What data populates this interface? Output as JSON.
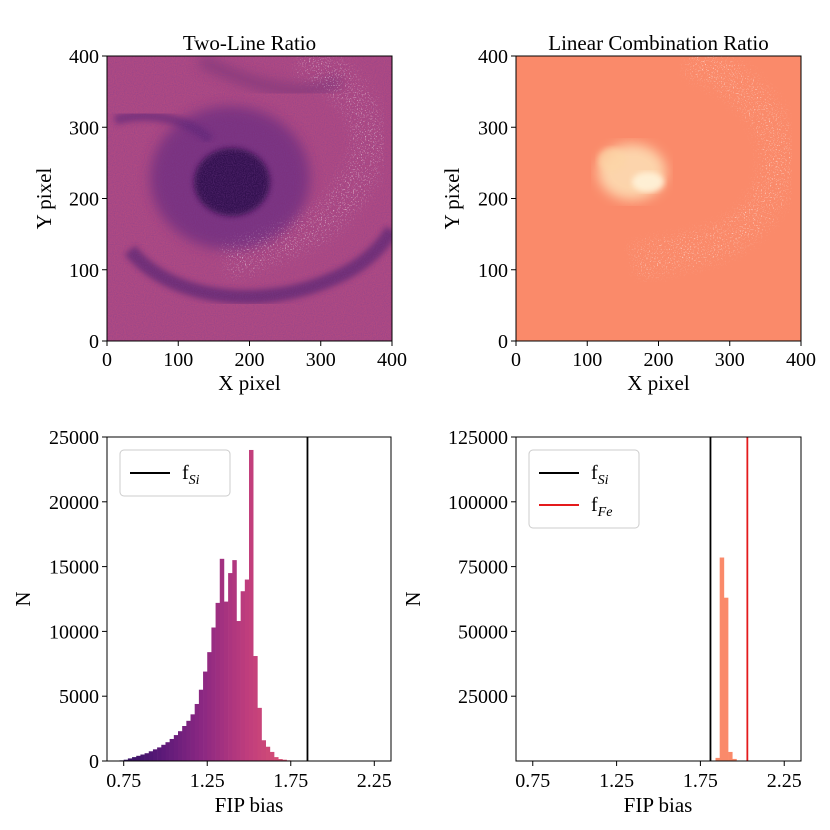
{
  "chart_data": [
    {
      "type": "heatmap",
      "title": "Two-Line Ratio",
      "xlabel": "X pixel",
      "ylabel": "Y pixel",
      "xlim": [
        0,
        400
      ],
      "ylim": [
        0,
        400
      ],
      "xticks": [
        "0",
        "100",
        "200",
        "300",
        "400"
      ],
      "yticks": [
        "0",
        "100",
        "200",
        "300",
        "400"
      ],
      "colormap": "magma",
      "colors": {
        "background": "#b04a82",
        "dark": "#3a1358",
        "mid": "#6a2a7e",
        "highlight": "#ffffff"
      }
    },
    {
      "type": "heatmap",
      "title": "Linear Combination Ratio",
      "xlabel": "X pixel",
      "ylabel": "Y pixel",
      "xlim": [
        0,
        400
      ],
      "ylim": [
        0,
        400
      ],
      "xticks": [
        "0",
        "100",
        "200",
        "300",
        "400"
      ],
      "yticks": [
        "0",
        "100",
        "200",
        "300",
        "400"
      ],
      "colormap": "magma",
      "colors": {
        "background": "#fa8a6a",
        "light": "#fde2b8",
        "highlight": "#ffffff"
      }
    },
    {
      "type": "bar",
      "xlabel": "FIP bias",
      "ylabel": "N",
      "xlim": [
        0.65,
        2.35
      ],
      "ylim": [
        0,
        25000
      ],
      "xticks": [
        0.75,
        1.25,
        1.75,
        2.25
      ],
      "xtick_labels": [
        "0.75",
        "1.25",
        "1.75",
        "2.25"
      ],
      "yticks": [
        0,
        5000,
        10000,
        15000,
        20000,
        25000
      ],
      "ytick_labels": [
        "0",
        "5000",
        "10000",
        "15000",
        "20000",
        "25000"
      ],
      "bin_start": 0.7,
      "bin_width": 0.025,
      "values": [
        0,
        50,
        100,
        200,
        300,
        400,
        500,
        600,
        750,
        900,
        1050,
        1250,
        1450,
        1700,
        2000,
        2300,
        2700,
        3100,
        3600,
        4400,
        5500,
        6900,
        8400,
        10300,
        12200,
        15600,
        12300,
        14500,
        15500,
        10800,
        13100,
        14000,
        24000,
        8100,
        4100,
        1600,
        1100,
        700,
        300,
        150,
        100,
        50
      ],
      "bar_colormap": "magma",
      "vlines": [
        {
          "x": 1.85,
          "color": "#000000",
          "label": "f",
          "label_sub": "Si"
        }
      ],
      "legend": [
        {
          "label": "f",
          "sub": "Si",
          "color": "#000000"
        }
      ],
      "legend_position": "upper-left"
    },
    {
      "type": "bar",
      "xlabel": "FIP bias",
      "ylabel": "N",
      "xlim": [
        0.65,
        2.35
      ],
      "ylim": [
        0,
        125000
      ],
      "xticks": [
        0.75,
        1.25,
        1.75,
        2.25
      ],
      "xtick_labels": [
        "0.75",
        "1.25",
        "1.75",
        "2.25"
      ],
      "yticks": [
        25000,
        50000,
        75000,
        100000,
        125000
      ],
      "ytick_labels": [
        "25000",
        "50000",
        "75000",
        "100000",
        "125000"
      ],
      "bin_start": 1.84,
      "bin_width": 0.025,
      "values": [
        1200,
        78500,
        63000,
        3500,
        800
      ],
      "bar_color": "#fa8a6a",
      "vlines": [
        {
          "x": 1.81,
          "color": "#000000",
          "label": "f",
          "label_sub": "Si"
        },
        {
          "x": 2.03,
          "color": "#e41a1c",
          "label": "f",
          "label_sub": "Fe"
        }
      ],
      "legend": [
        {
          "label": "f",
          "sub": "Si",
          "color": "#000000"
        },
        {
          "label": "f",
          "sub": "Fe",
          "color": "#e41a1c"
        }
      ],
      "legend_position": "upper-left"
    }
  ]
}
